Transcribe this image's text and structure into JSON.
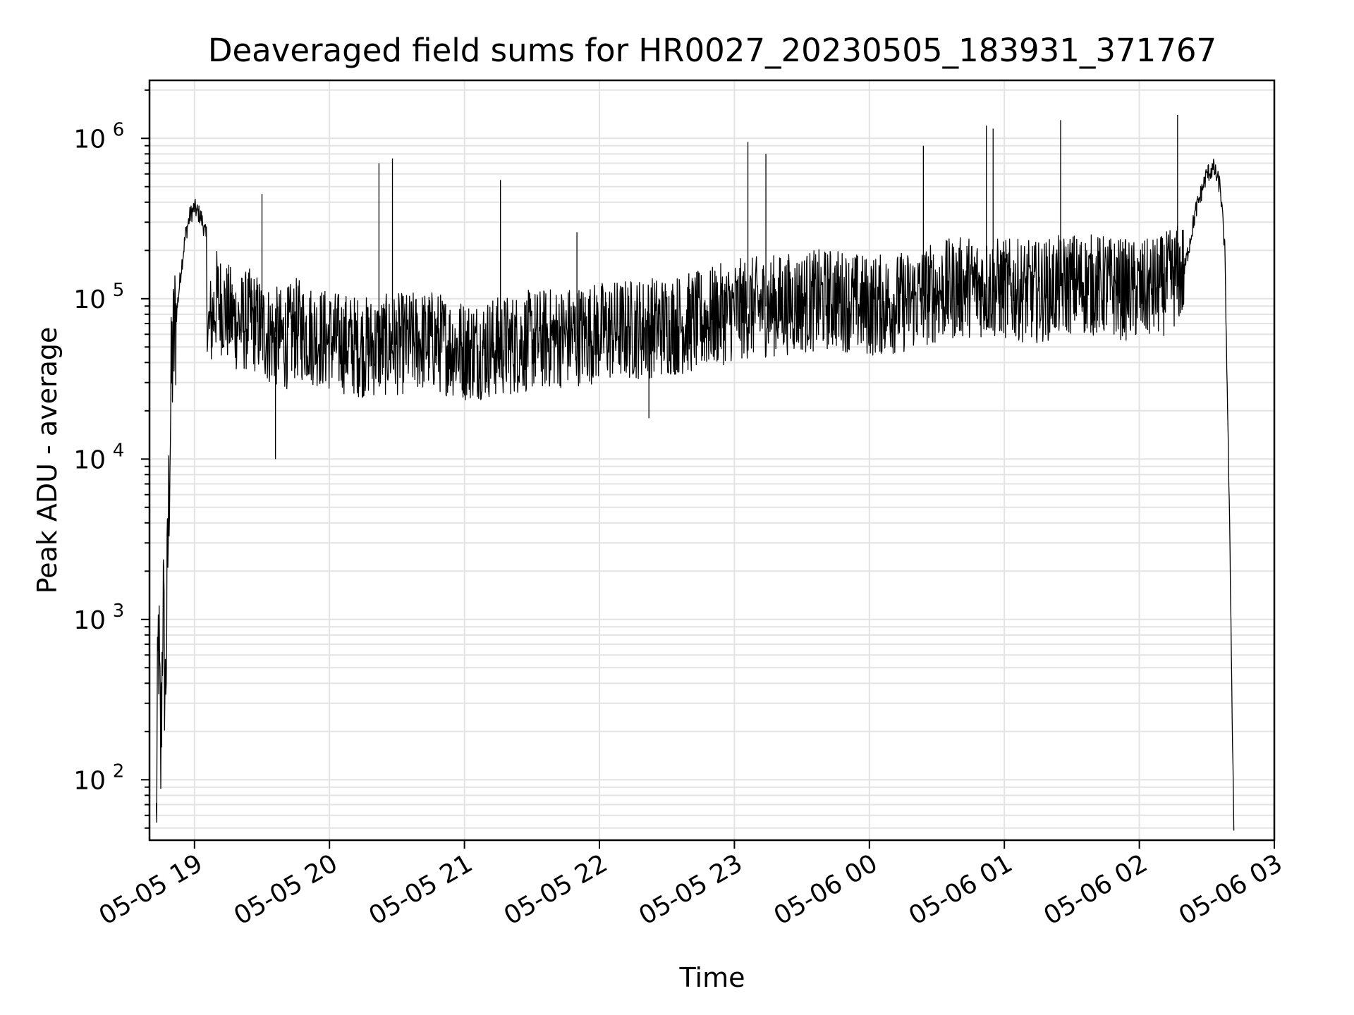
{
  "chart_data": {
    "type": "line",
    "title": "Deaveraged field sums for HR0027_20230505_183931_371767",
    "xlabel": "Time",
    "ylabel": "Peak ADU - average",
    "yscale": "log",
    "ylim": [
      42,
      2300000
    ],
    "xlim": [
      "2023-05-05 18:40",
      "2023-05-06 03:00"
    ],
    "grid": true,
    "x_ticks": [
      "05-05 19",
      "05-05 20",
      "05-05 21",
      "05-05 22",
      "05-05 23",
      "05-06 00",
      "05-06 01",
      "05-06 02",
      "05-06 03"
    ],
    "y_ticks": [
      100,
      1000,
      10000,
      100000,
      1000000
    ],
    "series": [
      {
        "color": "#000000",
        "x": [
          "2023-05-05 18:43",
          "2023-05-05 18:44",
          "2023-05-05 18:45",
          "2023-05-05 18:46",
          "2023-05-05 18:47",
          "2023-05-05 18:49",
          "2023-05-05 18:50",
          "2023-05-05 18:52",
          "2023-05-05 18:54",
          "2023-05-05 18:56",
          "2023-05-05 18:58",
          "2023-05-05 19:00",
          "2023-05-05 19:03",
          "2023-05-05 19:05",
          "2023-05-05 19:06",
          "2023-05-05 19:10",
          "2023-05-05 19:15",
          "2023-05-05 19:20",
          "2023-05-05 19:25",
          "2023-05-05 19:33",
          "2023-05-05 19:40",
          "2023-05-05 19:45",
          "2023-05-05 20:00",
          "2023-05-05 20:15",
          "2023-05-05 20:30",
          "2023-05-05 20:45",
          "2023-05-05 21:00",
          "2023-05-05 21:15",
          "2023-05-05 21:30",
          "2023-05-05 21:45",
          "2023-05-05 22:00",
          "2023-05-05 22:15",
          "2023-05-05 22:30",
          "2023-05-05 22:45",
          "2023-05-05 23:00",
          "2023-05-05 23:15",
          "2023-05-05 23:30",
          "2023-05-05 23:45",
          "2023-05-06 00:00",
          "2023-05-06 00:15",
          "2023-05-06 00:30",
          "2023-05-06 00:45",
          "2023-05-06 01:00",
          "2023-05-06 01:15",
          "2023-05-06 01:30",
          "2023-05-06 01:45",
          "2023-05-06 02:00",
          "2023-05-06 02:10",
          "2023-05-06 02:20",
          "2023-05-06 02:25",
          "2023-05-06 02:30",
          "2023-05-06 02:33",
          "2023-05-06 02:36",
          "2023-05-06 02:38",
          "2023-05-06 02:40",
          "2023-05-06 02:42"
        ],
        "y": [
          50,
          900,
          120,
          1500,
          300,
          12000,
          40000,
          80000,
          150000,
          250000,
          330000,
          370000,
          320000,
          250000,
          60000,
          100000,
          80000,
          70000,
          75000,
          60000,
          55000,
          65000,
          55000,
          50000,
          52000,
          55000,
          48000,
          50000,
          55000,
          58000,
          62000,
          65000,
          68000,
          72000,
          85000,
          90000,
          95000,
          100000,
          90000,
          95000,
          110000,
          120000,
          115000,
          110000,
          125000,
          120000,
          110000,
          120000,
          150000,
          350000,
          600000,
          650000,
          500000,
          200000,
          5000,
          50
        ],
        "spikes": [
          {
            "x": "2023-05-05 19:30",
            "y": 450000
          },
          {
            "x": "2023-05-05 19:36",
            "y": 10000
          },
          {
            "x": "2023-05-05 20:22",
            "y": 700000
          },
          {
            "x": "2023-05-05 20:28",
            "y": 750000
          },
          {
            "x": "2023-05-05 21:16",
            "y": 550000
          },
          {
            "x": "2023-05-05 21:50",
            "y": 260000
          },
          {
            "x": "2023-05-05 22:22",
            "y": 18000
          },
          {
            "x": "2023-05-05 23:06",
            "y": 950000
          },
          {
            "x": "2023-05-05 23:14",
            "y": 800000
          },
          {
            "x": "2023-05-06 00:24",
            "y": 900000
          },
          {
            "x": "2023-05-06 00:52",
            "y": 1200000
          },
          {
            "x": "2023-05-06 00:55",
            "y": 1150000
          },
          {
            "x": "2023-05-06 01:25",
            "y": 1300000
          },
          {
            "x": "2023-05-06 02:17",
            "y": 1400000
          }
        ]
      }
    ]
  }
}
